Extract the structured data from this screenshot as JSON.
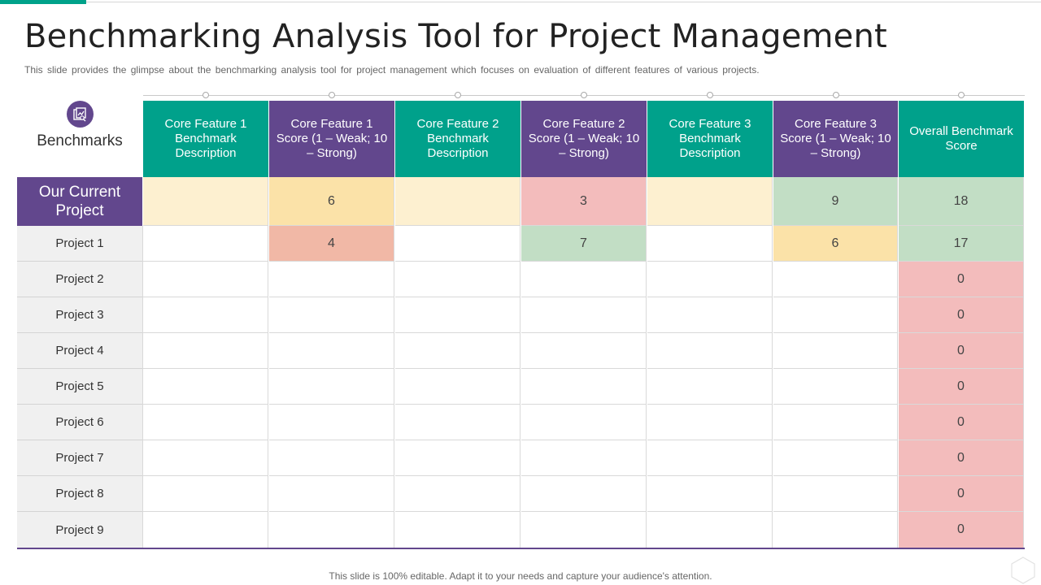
{
  "title": "Benchmarking Analysis Tool for Project Management",
  "subtitle": "This slide provides  the glimpse about the benchmarking analysis tool for project management which focuses on evaluation  of different  features of various  projects.",
  "table": {
    "corner_label": "Benchmarks",
    "headers": [
      "Core Feature 1 Benchmark Description",
      "Core Feature 1 Score (1 – Weak; 10 – Strong)",
      "Core Feature 2 Benchmark Description",
      "Core Feature 2 Score (1 – Weak; 10 – Strong)",
      "Core Feature 3 Benchmark Description",
      "Core Feature 3 Score (1 – Weak; 10 – Strong)",
      "Overall Benchmark Score"
    ],
    "rows": [
      {
        "label": "Our Current Project",
        "cells": [
          "",
          "6",
          "",
          "3",
          "",
          "9",
          "18"
        ]
      },
      {
        "label": "Project 1",
        "cells": [
          "",
          "4",
          "",
          "7",
          "",
          "6",
          "17"
        ]
      },
      {
        "label": "Project 2",
        "cells": [
          "",
          "",
          "",
          "",
          "",
          "",
          "0"
        ]
      },
      {
        "label": "Project 3",
        "cells": [
          "",
          "",
          "",
          "",
          "",
          "",
          "0"
        ]
      },
      {
        "label": "Project 4",
        "cells": [
          "",
          "",
          "",
          "",
          "",
          "",
          "0"
        ]
      },
      {
        "label": "Project 5",
        "cells": [
          "",
          "",
          "",
          "",
          "",
          "",
          "0"
        ]
      },
      {
        "label": "Project 6",
        "cells": [
          "",
          "",
          "",
          "",
          "",
          "",
          "0"
        ]
      },
      {
        "label": "Project 7",
        "cells": [
          "",
          "",
          "",
          "",
          "",
          "",
          "0"
        ]
      },
      {
        "label": "Project 8",
        "cells": [
          "",
          "",
          "",
          "",
          "",
          "",
          "0"
        ]
      },
      {
        "label": "Project 9",
        "cells": [
          "",
          "",
          "",
          "",
          "",
          "",
          "0"
        ]
      }
    ]
  },
  "colors": {
    "teal": "#00a18b",
    "purple": "#62478d",
    "cream": "#fdf0d0",
    "yellow": "#fbe2a8",
    "red": "#f3bcbc",
    "green": "#c2dec5",
    "salmon": "#f1b8a6"
  },
  "icons": {
    "benchmark_icon": "benchmark-report-icon",
    "corner_icon": "hexagon-outline-icon"
  },
  "footer": "This slide is 100% editable. Adapt it to your needs and capture your audience's attention."
}
